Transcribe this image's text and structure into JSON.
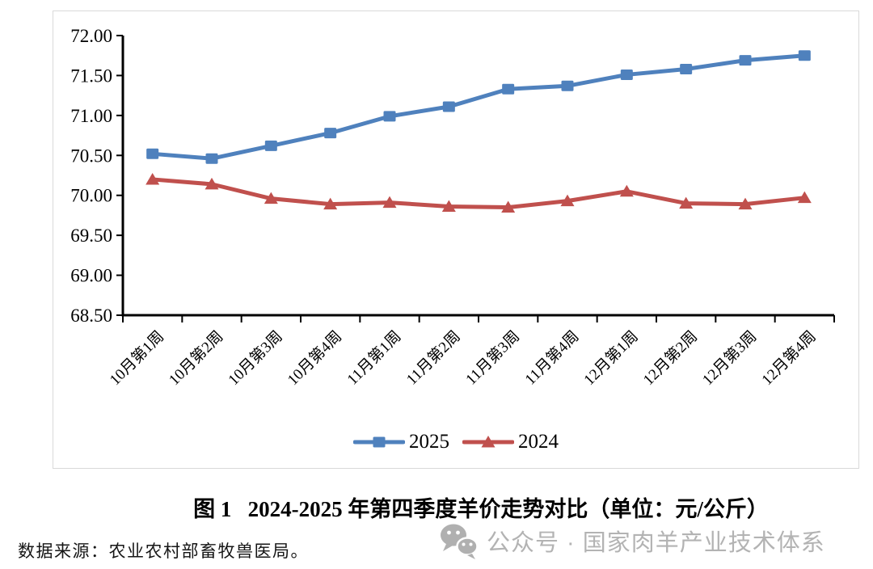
{
  "chart_data": {
    "type": "line",
    "title": "图1 2024-2025年第四季度羊价走势对比（单位：元/公斤）",
    "xlabel": "",
    "ylabel": "",
    "grid": false,
    "legend_position": "bottom-center",
    "axis_color": "#000000",
    "ylim": [
      68.5,
      72.0
    ],
    "yticks": [
      {
        "value": 68.5,
        "label": "68.50"
      },
      {
        "value": 69.0,
        "label": "69.00"
      },
      {
        "value": 69.5,
        "label": "69.50"
      },
      {
        "value": 70.0,
        "label": "70.00"
      },
      {
        "value": 70.5,
        "label": "70.50"
      },
      {
        "value": 71.0,
        "label": "71.00"
      },
      {
        "value": 71.5,
        "label": "71.50"
      },
      {
        "value": 72.0,
        "label": "72.00"
      }
    ],
    "categories": [
      "10月第1周",
      "10月第2周",
      "10月第3周",
      "10月第4周",
      "11月第1周",
      "11月第2周",
      "11月第3周",
      "11月第4周",
      "12月第1周",
      "12月第2周",
      "12月第3周",
      "12月第4周"
    ],
    "series": [
      {
        "name": "2025",
        "color": "#4F81BD",
        "marker": "square",
        "values": [
          70.52,
          70.46,
          70.62,
          70.78,
          70.99,
          71.11,
          71.33,
          71.37,
          71.51,
          71.58,
          71.69,
          71.75
        ]
      },
      {
        "name": "2024",
        "color": "#C0504D",
        "marker": "triangle",
        "values": [
          70.2,
          70.14,
          69.96,
          69.89,
          69.91,
          69.86,
          69.85,
          69.93,
          70.05,
          69.9,
          69.89,
          69.97
        ]
      }
    ]
  },
  "caption": {
    "text": "图 1   2024-2025 年第四季度羊价走势对比（单位：元/公斤）"
  },
  "footer": {
    "source": "数据来源：农业农村部畜牧兽医局。"
  },
  "watermark": {
    "icon": "wechat-icon",
    "text": "公众号 · 国家肉羊产业技术体系",
    "color": "#b3b3b3"
  }
}
